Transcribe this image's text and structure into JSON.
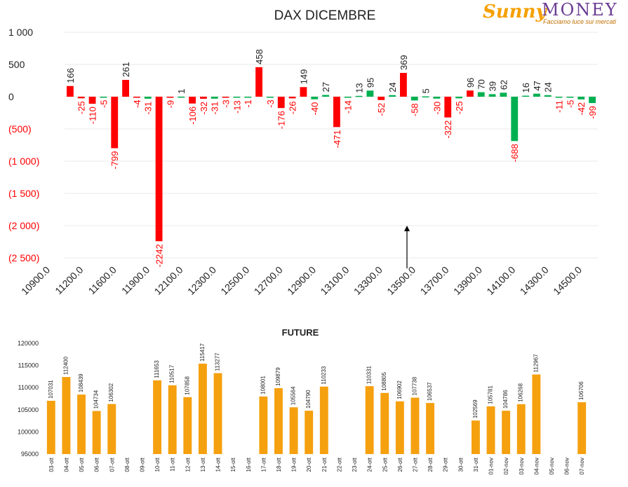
{
  "logo": {
    "brand_part1": "Sunny",
    "brand_part2": "MONEY",
    "tagline": "Facciamo luce sui mercati"
  },
  "colors": {
    "negative": "#ff0000",
    "positive": "#00b050",
    "future_bar": "#f5a00f",
    "grid": "#e8e8e8",
    "arrow": "#000000"
  },
  "chart_data": [
    {
      "type": "bar",
      "title": "DAX DICEMBRE",
      "ylim": [
        -2500,
        1000
      ],
      "y_ticks": [
        "1 000",
        "500",
        "0",
        "(500)",
        "(1 000)",
        "(1 500)",
        "(2 000)",
        "(2 500)"
      ],
      "x_tick_labels": [
        "10900.0",
        "11200.0",
        "11600.0",
        "11900.0",
        "12100.0",
        "12300.0",
        "12500.0",
        "12700.0",
        "12900.0",
        "13100.0",
        "13300.0",
        "13500.0",
        "13700.0",
        "13900.0",
        "14100.0",
        "14300.0",
        "14500.0"
      ],
      "annotation": "arrow pointing up at 13500.0",
      "series": [
        {
          "color": "red",
          "values": [
            166,
            -25,
            -110,
            -799,
            261,
            -4,
            -2242,
            -9,
            -106,
            -32,
            -3,
            -1,
            458,
            -176,
            -26,
            149,
            -471,
            -52,
            369,
            -322,
            96,
            null,
            null,
            null,
            null,
            null,
            null,
            null,
            null
          ]
        },
        {
          "color": "green",
          "values": [
            null,
            null,
            -5,
            null,
            null,
            -31,
            1,
            null,
            -31,
            -13,
            null,
            -3,
            null,
            null,
            null,
            -40,
            27,
            -14,
            13,
            95,
            24,
            -58,
            5,
            -30,
            -25,
            70,
            39,
            62,
            -688,
            16,
            47,
            24,
            -11,
            -5,
            -42,
            -99
          ]
        }
      ],
      "bars": [
        {
          "value": 166,
          "color": "red"
        },
        {
          "value": -25,
          "color": "red"
        },
        {
          "value": -110,
          "color": "red"
        },
        {
          "value": -5,
          "color": "green"
        },
        {
          "value": -799,
          "color": "red"
        },
        {
          "value": 261,
          "color": "red"
        },
        {
          "value": -4,
          "color": "red"
        },
        {
          "value": -31,
          "color": "green"
        },
        {
          "value": -2242,
          "color": "red"
        },
        {
          "value": -9,
          "color": "red"
        },
        {
          "value": 1,
          "color": "green"
        },
        {
          "value": -106,
          "color": "red"
        },
        {
          "value": -32,
          "color": "red"
        },
        {
          "value": -31,
          "color": "green"
        },
        {
          "value": -3,
          "color": "red"
        },
        {
          "value": -13,
          "color": "green"
        },
        {
          "value": -1,
          "color": "green"
        },
        {
          "value": 458,
          "color": "red"
        },
        {
          "value": -3,
          "color": "green"
        },
        {
          "value": -176,
          "color": "red"
        },
        {
          "value": -26,
          "color": "red"
        },
        {
          "value": 149,
          "color": "red"
        },
        {
          "value": -40,
          "color": "green"
        },
        {
          "value": 27,
          "color": "green"
        },
        {
          "value": -471,
          "color": "red"
        },
        {
          "value": -14,
          "color": "green"
        },
        {
          "value": 13,
          "color": "green"
        },
        {
          "value": 95,
          "color": "green"
        },
        {
          "value": -52,
          "color": "red"
        },
        {
          "value": 24,
          "color": "green"
        },
        {
          "value": 369,
          "color": "red"
        },
        {
          "value": -58,
          "color": "green"
        },
        {
          "value": 5,
          "color": "green"
        },
        {
          "value": -30,
          "color": "green"
        },
        {
          "value": -322,
          "color": "red"
        },
        {
          "value": -25,
          "color": "green"
        },
        {
          "value": 96,
          "color": "red"
        },
        {
          "value": 70,
          "color": "green"
        },
        {
          "value": 39,
          "color": "green"
        },
        {
          "value": 62,
          "color": "green"
        },
        {
          "value": -688,
          "color": "green"
        },
        {
          "value": 16,
          "color": "green"
        },
        {
          "value": 47,
          "color": "green"
        },
        {
          "value": 24,
          "color": "green"
        },
        {
          "value": -11,
          "color": "green"
        },
        {
          "value": -5,
          "color": "green"
        },
        {
          "value": -42,
          "color": "green"
        },
        {
          "value": -99,
          "color": "green"
        }
      ]
    },
    {
      "type": "bar",
      "title": "FUTURE",
      "ylim": [
        95000,
        120000
      ],
      "y_ticks": [
        "120000",
        "115000",
        "110000",
        "105000",
        "100000",
        "95000"
      ],
      "categories": [
        "03-ott",
        "04-ott",
        "05-ott",
        "06-ott",
        "07-ott",
        "08-ott",
        "09-ott",
        "10-ott",
        "11-ott",
        "12-ott",
        "13-ott",
        "14-ott",
        "15-ott",
        "16-ott",
        "17-ott",
        "18-ott",
        "19-ott",
        "20-ott",
        "21-ott",
        "22-ott",
        "23-ott",
        "24-ott",
        "25-ott",
        "26-ott",
        "27-ott",
        "28-ott",
        "29-ott",
        "30-ott",
        "31-ott",
        "01-nov",
        "02-nov",
        "03-nov",
        "04-nov",
        "05-nov",
        "06-nov",
        "07-nov"
      ],
      "values": [
        107031,
        112400,
        108439,
        104734,
        106302,
        null,
        null,
        111653,
        110517,
        107858,
        115417,
        113277,
        null,
        null,
        108001,
        109879,
        105564,
        104790,
        110233,
        null,
        null,
        110331,
        108805,
        106902,
        107738,
        106537,
        null,
        null,
        102569,
        105781,
        104786,
        106268,
        112967,
        null,
        null,
        106706
      ]
    }
  ]
}
